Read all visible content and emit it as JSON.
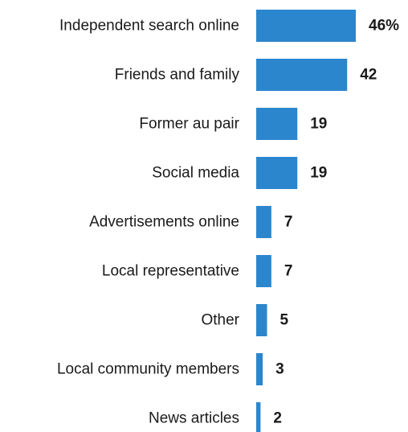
{
  "chart_data": {
    "type": "bar",
    "orientation": "horizontal",
    "categories": [
      "Independent search online",
      "Friends and family",
      "Former au pair",
      "Social media",
      "Advertisements online",
      "Local representative",
      "Other",
      "Local community members",
      "News articles"
    ],
    "values": [
      46,
      42,
      19,
      19,
      7,
      7,
      5,
      3,
      2
    ],
    "value_labels": [
      "46%",
      "42",
      "19",
      "19",
      "7",
      "7",
      "5",
      "3",
      "2"
    ],
    "title": "",
    "xlabel": "",
    "ylabel": "",
    "xlim": [
      0,
      46
    ],
    "grid": false,
    "legend": "none",
    "bar_color": "#2b86cd",
    "text_color": "#1a1a1a"
  }
}
